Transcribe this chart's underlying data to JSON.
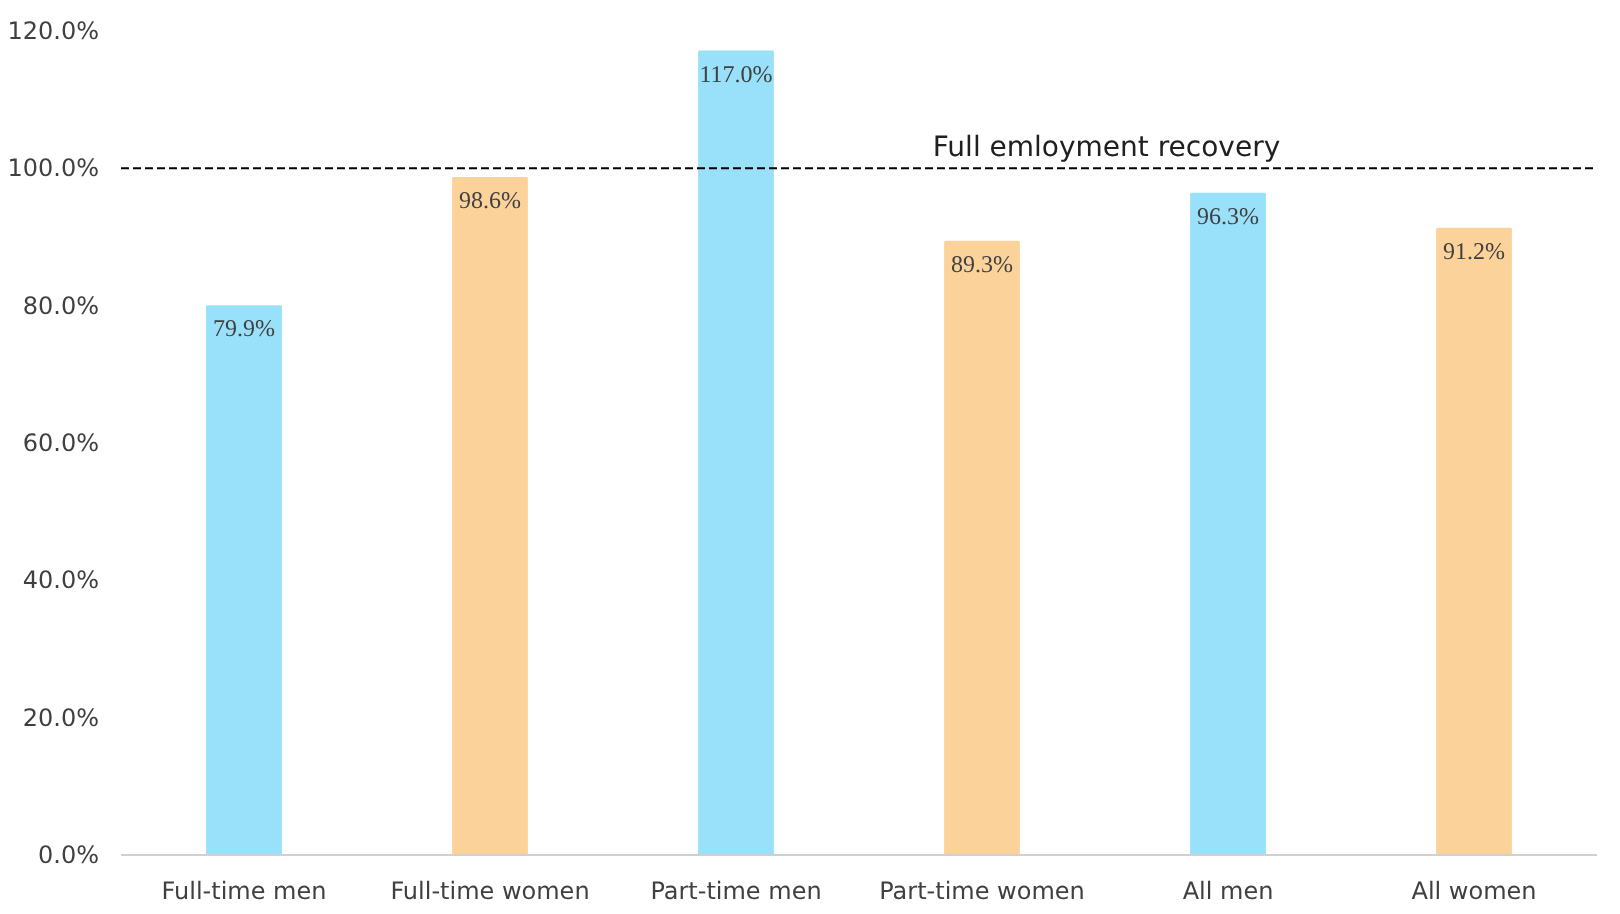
{
  "chart_data": {
    "type": "bar",
    "categories": [
      "Full-time men",
      "Full-time women",
      "Part-time men",
      "Part-time women",
      "All men",
      "All women"
    ],
    "values": [
      79.9,
      98.6,
      117.0,
      89.3,
      96.3,
      91.2
    ],
    "colors": [
      "#99e0fb",
      "#fcd29b",
      "#99e0fb",
      "#fcd29b",
      "#99e0fb",
      "#fcd29b"
    ],
    "value_labels": [
      "79.9%",
      "98.6%",
      "117.0%",
      "89.3%",
      "96.3%",
      "91.2%"
    ],
    "ylim": [
      0,
      120
    ],
    "yticks": [
      {
        "value": 0,
        "label": "0.0%"
      },
      {
        "value": 20,
        "label": "20.0%"
      },
      {
        "value": 40,
        "label": "40.0%"
      },
      {
        "value": 60,
        "label": "60.0%"
      },
      {
        "value": 80,
        "label": "80.0%"
      },
      {
        "value": 100,
        "label": "100.0%"
      },
      {
        "value": 120,
        "label": "120.0%"
      }
    ],
    "ref_lines": [
      {
        "axis": "y",
        "value": 100,
        "label": "Full emloyment recovery",
        "color": "#000000",
        "line_style": "dashed"
      }
    ],
    "grid": false
  }
}
